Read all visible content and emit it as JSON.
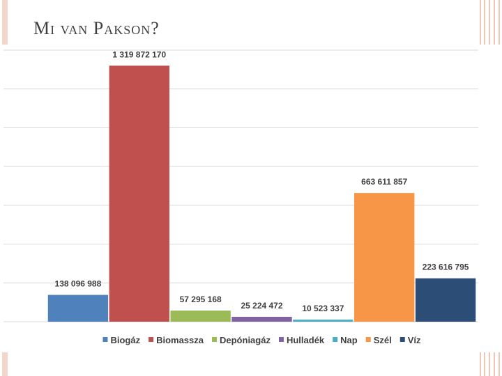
{
  "slide": {
    "title": "Mi van Pakson?"
  },
  "chart_data": {
    "type": "bar",
    "categories": [
      "Biogáz",
      "Biomassza",
      "Depóniagáz",
      "Hulladék",
      "Nap",
      "Szél",
      "Víz"
    ],
    "series": [
      {
        "name": "Biogáz",
        "value": 138096988,
        "label": "138 096 988",
        "color": "#4f81bd"
      },
      {
        "name": "Biomassza",
        "value": 1319872170,
        "label": "1 319 872 170",
        "color": "#c0504d"
      },
      {
        "name": "Depóniagáz",
        "value": 57295168,
        "label": "57 295 168",
        "color": "#9bbb59"
      },
      {
        "name": "Hulladék",
        "value": 25224472,
        "label": "25 224 472",
        "color": "#8064a2"
      },
      {
        "name": "Nap",
        "value": 10523337,
        "label": "10 523 337",
        "color": "#4bacc6"
      },
      {
        "name": "Szél",
        "value": 663611857,
        "label": "663 611 857",
        "color": "#f79646"
      },
      {
        "name": "Víz",
        "value": 223616795,
        "label": "223 616 795",
        "color": "#2c4d75"
      }
    ],
    "ylim": [
      0,
      1400000000
    ],
    "grid": true,
    "legend": "bottom"
  }
}
